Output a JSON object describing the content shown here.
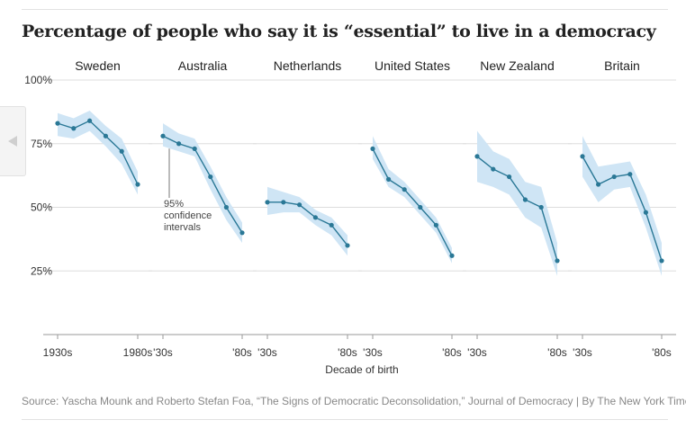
{
  "title": "Percentage of people who say it is “essential” to live in a democracy",
  "source": "Source: Yascha Mounk and Roberto Stefan Foa, “The Signs of Democratic Deconsolidation,” Journal of Democracy | By The New York Times",
  "colors": {
    "line": "#2a7896",
    "band": "#cfe5f5",
    "grid": "#dddddd",
    "axis": "#999999"
  },
  "chart_data": {
    "type": "line",
    "layout": "small-multiples",
    "xlabel": "Decade of birth",
    "x": [
      1930,
      1940,
      1950,
      1960,
      1970,
      1980
    ],
    "ylim": [
      0,
      100
    ],
    "yticks": [
      25,
      50,
      75,
      100
    ],
    "ytick_labels": [
      "25%",
      "50%",
      "75%",
      "100%"
    ],
    "grid": true,
    "annotation": {
      "panel": "Australia",
      "text": [
        "95%",
        "confidence",
        "intervals"
      ]
    },
    "series": [
      {
        "name": "Sweden",
        "xtick_labels": [
          "1930s",
          "1980s"
        ],
        "values": [
          83,
          81,
          84,
          78,
          72,
          59
        ],
        "ci_low": [
          78,
          77,
          80,
          74,
          67,
          55
        ],
        "ci_high": [
          87,
          85,
          88,
          82,
          77,
          64
        ]
      },
      {
        "name": "Australia",
        "xtick_labels": [
          "'30s",
          "'80s"
        ],
        "values": [
          78,
          75,
          73,
          62,
          50,
          40
        ],
        "ci_low": [
          74,
          72,
          70,
          57,
          45,
          36
        ],
        "ci_high": [
          83,
          79,
          77,
          66,
          54,
          44
        ]
      },
      {
        "name": "Netherlands",
        "xtick_labels": [
          "'30s",
          "'80s"
        ],
        "values": [
          52,
          52,
          51,
          46,
          43,
          35
        ],
        "ci_low": [
          47,
          48,
          48,
          43,
          39,
          31
        ],
        "ci_high": [
          58,
          56,
          54,
          49,
          46,
          39
        ]
      },
      {
        "name": "United States",
        "xtick_labels": [
          "'30s",
          "'80s"
        ],
        "values": [
          73,
          61,
          57,
          50,
          43,
          31
        ],
        "ci_low": [
          69,
          58,
          54,
          47,
          40,
          28
        ],
        "ci_high": [
          78,
          65,
          60,
          53,
          46,
          34
        ]
      },
      {
        "name": "New Zealand",
        "xtick_labels": [
          "'30s",
          "'80s"
        ],
        "values": [
          70,
          65,
          62,
          53,
          50,
          29
        ],
        "ci_low": [
          60,
          58,
          55,
          46,
          42,
          23
        ],
        "ci_high": [
          80,
          72,
          69,
          60,
          58,
          36
        ]
      },
      {
        "name": "Britain",
        "xtick_labels": [
          "'30s",
          "'80s"
        ],
        "values": [
          70,
          59,
          62,
          63,
          48,
          29
        ],
        "ci_low": [
          62,
          52,
          57,
          58,
          42,
          23
        ],
        "ci_high": [
          78,
          66,
          67,
          68,
          55,
          36
        ]
      }
    ]
  }
}
